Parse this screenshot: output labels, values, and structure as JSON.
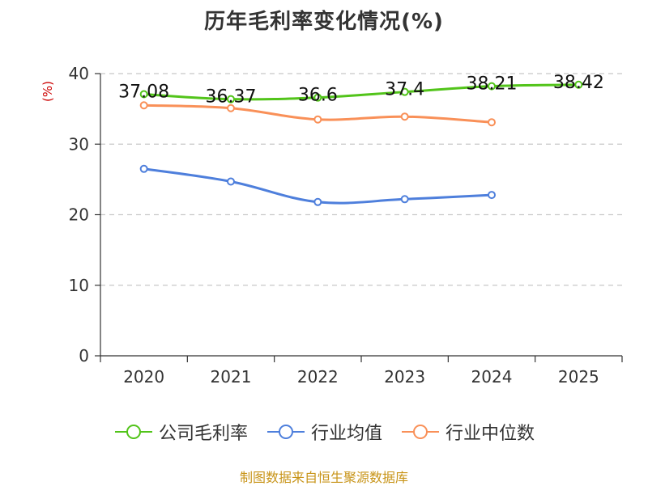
{
  "chart_data": {
    "type": "line",
    "title": "历年毛利率变化情况(%)",
    "xlabel": "",
    "ylabel": "(%)",
    "categories": [
      "2020",
      "2021",
      "2022",
      "2023",
      "2024",
      "2025"
    ],
    "ylim": [
      0,
      40
    ],
    "yticks": [
      0,
      10,
      20,
      30,
      40
    ],
    "grid": true,
    "legend_position": "bottom",
    "series": [
      {
        "name": "公司毛利率",
        "color": "#52c41a",
        "values": [
          37.08,
          36.37,
          36.6,
          37.4,
          38.21,
          38.42
        ],
        "labels": [
          "37.08",
          "36.37",
          "36.6",
          "37.4",
          "38.21",
          "38.42"
        ]
      },
      {
        "name": "行业均值",
        "color": "#4e7fdc",
        "values": [
          26.5,
          24.7,
          21.8,
          22.2,
          22.8,
          null
        ]
      },
      {
        "name": "行业中位数",
        "color": "#f99058",
        "values": [
          35.5,
          35.1,
          33.5,
          33.9,
          33.1,
          null
        ]
      }
    ]
  },
  "source": "制图数据来自恒生聚源数据库"
}
